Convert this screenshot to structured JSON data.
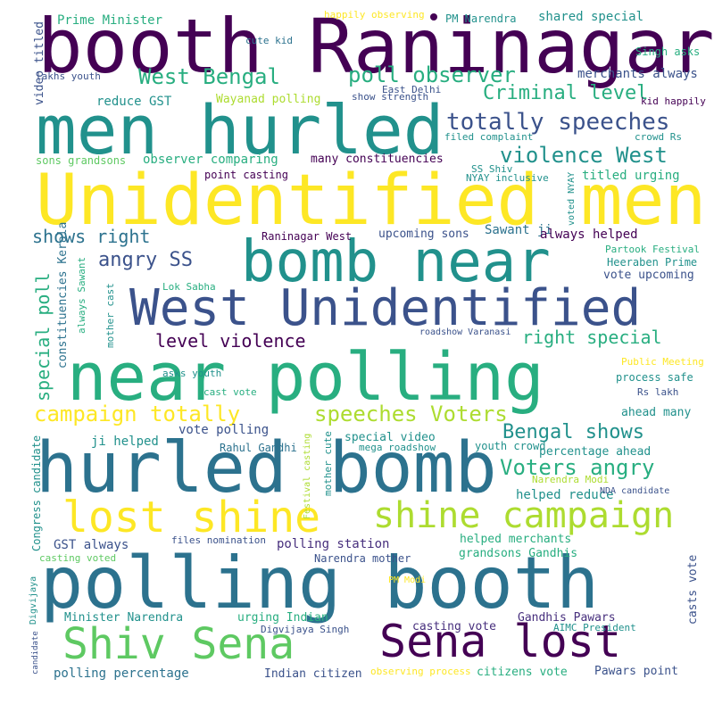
{
  "palette": {
    "deep": "#440154",
    "purple": "#472f7d",
    "indigo": "#3b528b",
    "blue": "#2c728e",
    "teal": "#21918c",
    "green": "#28ae80",
    "lime": "#5ec962",
    "yellowgreen": "#addc30",
    "yellow": "#fde725"
  },
  "words": [
    {
      "text": "booth Raninagar",
      "c": "deep"
    },
    {
      "text": "men hurled",
      "c": "teal"
    },
    {
      "text": "Unidentified men",
      "c": "yellow"
    },
    {
      "text": "bomb near",
      "c": "teal"
    },
    {
      "text": "West Unidentified",
      "c": "indigo"
    },
    {
      "text": "near polling",
      "c": "green"
    },
    {
      "text": "hurled bomb",
      "c": "blue"
    },
    {
      "text": "lost shine",
      "c": "yellow"
    },
    {
      "text": "shine campaign",
      "c": "yellowgreen"
    },
    {
      "text": "polling booth",
      "c": "blue"
    },
    {
      "text": "Shiv Sena",
      "c": "lime"
    },
    {
      "text": "Sena lost",
      "c": "deep"
    },
    {
      "text": "West Bengal",
      "c": "green"
    },
    {
      "text": "poll observer",
      "c": "green"
    },
    {
      "text": "Criminal level",
      "c": "green"
    },
    {
      "text": "totally speeches",
      "c": "indigo"
    },
    {
      "text": "violence West",
      "c": "teal"
    },
    {
      "text": "shows right",
      "c": "blue"
    },
    {
      "text": "angry SS",
      "c": "indigo"
    },
    {
      "text": "level violence",
      "c": "deep"
    },
    {
      "text": "right special",
      "c": "green"
    },
    {
      "text": "campaign totally",
      "c": "yellow"
    },
    {
      "text": "speeches Voters",
      "c": "yellowgreen"
    },
    {
      "text": "Bengal shows",
      "c": "teal"
    },
    {
      "text": "Voters angry",
      "c": "green"
    },
    {
      "text": "Prime Minister",
      "c": "green"
    },
    {
      "text": "happily observing",
      "c": "yellow"
    },
    {
      "text": "PM Narendra",
      "c": "teal"
    },
    {
      "text": "shared special",
      "c": "teal"
    },
    {
      "text": "cute kid",
      "c": "blue"
    },
    {
      "text": "Singh asks",
      "c": "green"
    },
    {
      "text": "merchants always",
      "c": "indigo"
    },
    {
      "text": "lakhs youth",
      "c": "indigo"
    },
    {
      "text": "reduce GST",
      "c": "teal"
    },
    {
      "text": "Wayanad polling",
      "c": "yellowgreen"
    },
    {
      "text": "show strength",
      "c": "indigo"
    },
    {
      "text": "East Delhi",
      "c": "indigo"
    },
    {
      "text": "filed complaint",
      "c": "teal"
    },
    {
      "text": "crowd Rs",
      "c": "teal"
    },
    {
      "text": "sons grandsons",
      "c": "lime"
    },
    {
      "text": "observer comparing",
      "c": "green"
    },
    {
      "text": "many constituencies",
      "c": "deep"
    },
    {
      "text": "SS Shiv",
      "c": "teal"
    },
    {
      "text": "NYAY inclusive",
      "c": "teal"
    },
    {
      "text": "titled urging",
      "c": "green"
    },
    {
      "text": "point casting",
      "c": "deep"
    },
    {
      "text": "Raninagar West",
      "c": "deep"
    },
    {
      "text": "upcoming sons",
      "c": "indigo"
    },
    {
      "text": "Sawant ji",
      "c": "blue"
    },
    {
      "text": "always helped",
      "c": "deep"
    },
    {
      "text": "Partook Festival",
      "c": "green"
    },
    {
      "text": "Heeraben Prime",
      "c": "teal"
    },
    {
      "text": "vote upcoming",
      "c": "indigo"
    },
    {
      "text": "Lok Sabha",
      "c": "green"
    },
    {
      "text": "roadshow Varanasi",
      "c": "indigo"
    },
    {
      "text": "Public Meeting",
      "c": "yellow"
    },
    {
      "text": "asks youth",
      "c": "teal"
    },
    {
      "text": "process safe",
      "c": "teal"
    },
    {
      "text": "cast vote",
      "c": "green"
    },
    {
      "text": "Rs lakh",
      "c": "indigo"
    },
    {
      "text": "ahead many",
      "c": "teal"
    },
    {
      "text": "vote polling",
      "c": "indigo"
    },
    {
      "text": "ji helped",
      "c": "teal"
    },
    {
      "text": "Rahul Gandhi",
      "c": "blue"
    },
    {
      "text": "special video",
      "c": "teal"
    },
    {
      "text": "mega roadshow",
      "c": "teal"
    },
    {
      "text": "youth crowd",
      "c": "teal"
    },
    {
      "text": "percentage ahead",
      "c": "teal"
    },
    {
      "text": "Narendra Modi",
      "c": "yellowgreen"
    },
    {
      "text": "helped reduce",
      "c": "teal"
    },
    {
      "text": "NDA candidate",
      "c": "indigo"
    },
    {
      "text": "GST always",
      "c": "indigo"
    },
    {
      "text": "files nomination",
      "c": "indigo"
    },
    {
      "text": "polling station",
      "c": "purple"
    },
    {
      "text": "helped merchants",
      "c": "green"
    },
    {
      "text": "Narendra mother",
      "c": "indigo"
    },
    {
      "text": "grandsons Gandhis",
      "c": "green"
    },
    {
      "text": "casting voted",
      "c": "lime"
    },
    {
      "text": "PM Modi",
      "c": "yellow"
    },
    {
      "text": "Minister Narendra",
      "c": "teal"
    },
    {
      "text": "urging Indian",
      "c": "green"
    },
    {
      "text": "Gandhis Pawars",
      "c": "purple"
    },
    {
      "text": "Digvijaya Singh",
      "c": "indigo"
    },
    {
      "text": "casting vote",
      "c": "purple"
    },
    {
      "text": "AIMC President",
      "c": "teal"
    },
    {
      "text": "polling percentage",
      "c": "blue"
    },
    {
      "text": "Indian citizen",
      "c": "indigo"
    },
    {
      "text": "observing process",
      "c": "yellow"
    },
    {
      "text": "citizens vote",
      "c": "green"
    },
    {
      "text": "Pawars point",
      "c": "indigo"
    },
    {
      "text": "kid happily",
      "c": "deep"
    },
    {
      "text": "video titled",
      "c": "indigo"
    },
    {
      "text": "special poll",
      "c": "green"
    },
    {
      "text": "constituencies Kerala",
      "c": "blue"
    },
    {
      "text": "always Sawant",
      "c": "green"
    },
    {
      "text": "mother cast",
      "c": "teal"
    },
    {
      "text": "Congress candidate",
      "c": "teal"
    },
    {
      "text": "Digvijaya",
      "c": "teal"
    },
    {
      "text": "candidate",
      "c": "indigo"
    },
    {
      "text": "Festival casting",
      "c": "yellowgreen"
    },
    {
      "text": "mother cute",
      "c": "teal"
    },
    {
      "text": "voted NYAY",
      "c": "teal"
    },
    {
      "text": "casts vote",
      "c": "indigo"
    }
  ]
}
